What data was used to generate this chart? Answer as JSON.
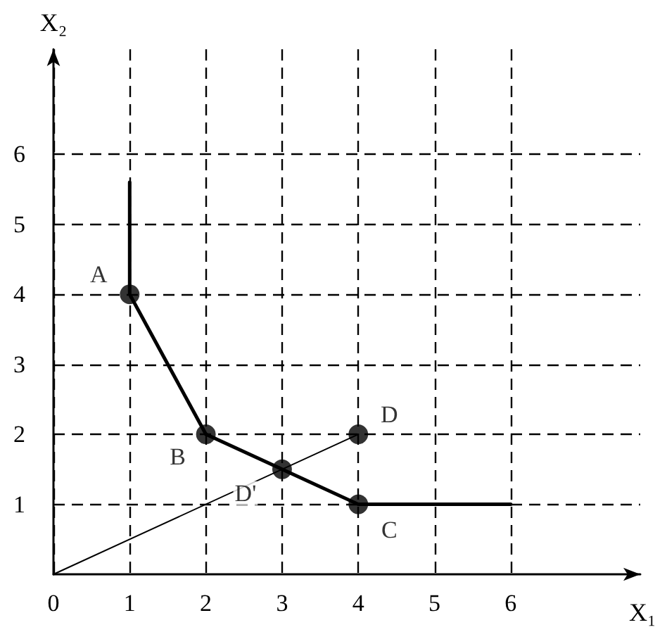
{
  "chart_data": {
    "type": "line",
    "xlabel": "X₁",
    "ylabel": "X₂",
    "xlim": [
      0,
      7.7
    ],
    "ylim": [
      0,
      7.5
    ],
    "xticks": [
      0,
      1,
      2,
      3,
      4,
      5,
      6
    ],
    "yticks": [
      1,
      2,
      3,
      4,
      5,
      6
    ],
    "grid": true,
    "series": [
      {
        "color": "#000000",
        "marker": "none",
        "x": [
          1,
          1,
          2,
          3,
          4,
          6
        ],
        "values": [
          5.6,
          4,
          2,
          1.5,
          1,
          1
        ]
      },
      {
        "color": "#000000",
        "marker": "none",
        "x": [
          0,
          4
        ],
        "values": [
          0,
          2
        ]
      },
      {
        "type": "scatter",
        "color": "#000000",
        "marker": "circle",
        "x": [
          1,
          2,
          3,
          4,
          4
        ],
        "values": [
          4,
          2,
          1.5,
          1,
          2
        ]
      }
    ],
    "annotations": [
      {
        "text": "A",
        "x": 1,
        "y": 4
      },
      {
        "text": "B",
        "x": 2,
        "y": 2
      },
      {
        "text": "D'",
        "x": 3,
        "y": 1.5
      },
      {
        "text": "C",
        "x": 4,
        "y": 1
      },
      {
        "text": "D",
        "x": 4,
        "y": 2
      }
    ]
  }
}
